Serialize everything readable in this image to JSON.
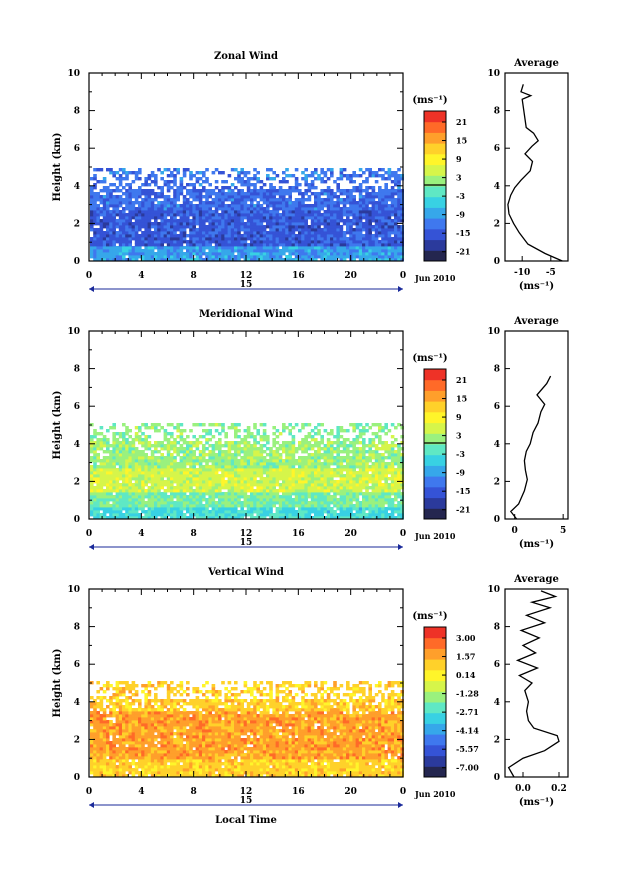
{
  "colors": {
    "background": "#ffffff",
    "axis": "#000000",
    "palette": [
      "#24264f",
      "#2b3a9c",
      "#3553d6",
      "#3f78ee",
      "#36a7ea",
      "#38d1e3",
      "#5fe8c4",
      "#9af17e",
      "#d6f54a",
      "#fff52a",
      "#ffd12a",
      "#ff9f2b",
      "#ff6a28",
      "#ee3227"
    ]
  },
  "chart_data": [
    {
      "type": "heatmap",
      "title": "Zonal Wind",
      "ylabel": "Height (km)",
      "xlabel": "",
      "xlim": [
        0,
        24
      ],
      "ylim": [
        0,
        10
      ],
      "x_ticks": [
        "0",
        "4",
        "8",
        "12",
        "16",
        "20",
        "0"
      ],
      "y_ticks": [
        "0",
        "2",
        "4",
        "6",
        "8",
        "10"
      ],
      "date_axis": {
        "day_label": "15",
        "month_label": "Jun 2010"
      },
      "colorbar": {
        "unit": "(ms⁻¹)",
        "ticks": [
          "21",
          "15",
          "9",
          "3",
          "-3",
          "-9",
          "-15",
          "-21"
        ],
        "range": [
          -24,
          24
        ],
        "zero_line": true
      },
      "field": {
        "description_bins": "dominant value per height band (km)",
        "bands": [
          {
            "from": 0.0,
            "to": 0.7,
            "value": -9
          },
          {
            "from": 0.7,
            "to": 2.6,
            "value": -15
          },
          {
            "from": 2.6,
            "to": 4.2,
            "value": -13
          },
          {
            "from": 4.2,
            "to": 4.8,
            "value": -12
          }
        ],
        "data_top_km": 4.8
      },
      "average_profile": {
        "title": "Average",
        "xlabel": "(ms⁻¹)",
        "x_ticks": [
          "-10",
          "-5"
        ],
        "xlim": [
          -13,
          -2
        ],
        "ylim": [
          0,
          10
        ],
        "points": [
          [
            -3,
            0.0
          ],
          [
            -6,
            0.4
          ],
          [
            -9,
            0.9
          ],
          [
            -10.5,
            1.5
          ],
          [
            -11.5,
            2.0
          ],
          [
            -12.3,
            2.5
          ],
          [
            -12.5,
            3.0
          ],
          [
            -12.0,
            3.5
          ],
          [
            -11.3,
            3.9
          ],
          [
            -10.2,
            4.3
          ],
          [
            -8.6,
            4.8
          ],
          [
            -8.2,
            5.3
          ],
          [
            -9.5,
            5.7
          ],
          [
            -8.3,
            6.1
          ],
          [
            -7.2,
            6.4
          ],
          [
            -8.0,
            6.8
          ],
          [
            -9.3,
            7.1
          ],
          [
            -10.0,
            8.6
          ],
          [
            -8.5,
            8.8
          ],
          [
            -10.2,
            9.0
          ],
          [
            -9.8,
            9.4
          ]
        ]
      }
    },
    {
      "type": "heatmap",
      "title": "Meridional Wind",
      "ylabel": "Height (km)",
      "xlabel": "",
      "xlim": [
        0,
        24
      ],
      "ylim": [
        0,
        10
      ],
      "x_ticks": [
        "0",
        "4",
        "8",
        "12",
        "16",
        "20",
        "0"
      ],
      "y_ticks": [
        "0",
        "2",
        "4",
        "6",
        "8",
        "10"
      ],
      "date_axis": {
        "day_label": "15",
        "month_label": "Jun 2010"
      },
      "colorbar": {
        "unit": "(ms⁻¹)",
        "ticks": [
          "21",
          "15",
          "9",
          "3",
          "-3",
          "-9",
          "-15",
          "-21"
        ],
        "range": [
          -24,
          24
        ],
        "zero_line": true
      },
      "field": {
        "description_bins": "dominant value per height band (km)",
        "bands": [
          {
            "from": 0.0,
            "to": 0.6,
            "value": -4
          },
          {
            "from": 0.6,
            "to": 1.3,
            "value": 0
          },
          {
            "from": 1.3,
            "to": 2.6,
            "value": 5
          },
          {
            "from": 2.6,
            "to": 4.1,
            "value": 2
          },
          {
            "from": 4.1,
            "to": 5.0,
            "value": 1
          }
        ],
        "data_top_km": 5.0
      },
      "average_profile": {
        "title": "Average",
        "xlabel": "(ms⁻¹)",
        "x_ticks": [
          "0",
          "5"
        ],
        "xlim": [
          -1,
          5.5
        ],
        "ylim": [
          0,
          10
        ],
        "points": [
          [
            0.2,
            0.0
          ],
          [
            -0.4,
            0.4
          ],
          [
            0.4,
            0.8
          ],
          [
            1.0,
            1.5
          ],
          [
            1.3,
            2.1
          ],
          [
            1.1,
            2.6
          ],
          [
            1.0,
            3.1
          ],
          [
            1.2,
            3.6
          ],
          [
            1.6,
            4.0
          ],
          [
            1.9,
            4.6
          ],
          [
            2.4,
            5.1
          ],
          [
            2.7,
            5.7
          ],
          [
            3.1,
            6.1
          ],
          [
            2.3,
            6.6
          ],
          [
            3.3,
            7.2
          ],
          [
            3.7,
            7.6
          ]
        ]
      }
    },
    {
      "type": "heatmap",
      "title": "Vertical Wind",
      "ylabel": "Height (km)",
      "xlabel": "Local Time",
      "xlim": [
        0,
        24
      ],
      "ylim": [
        0,
        10
      ],
      "x_ticks": [
        "0",
        "4",
        "8",
        "12",
        "16",
        "20",
        "0"
      ],
      "y_ticks": [
        "0",
        "2",
        "4",
        "6",
        "8",
        "10"
      ],
      "date_axis": {
        "day_label": "15",
        "month_label": "Jun 2010"
      },
      "colorbar": {
        "unit": "(ms⁻¹)",
        "ticks": [
          "3.00",
          "1.57",
          "0.14",
          "-1.28",
          "-2.71",
          "-4.14",
          "-5.57",
          "-7.00"
        ],
        "range": [
          -7.7,
          3.7
        ],
        "zero_line": false
      },
      "field": {
        "description_bins": "dominant value per height band (km)",
        "bands": [
          {
            "from": 0.0,
            "to": 0.8,
            "value": 0.8
          },
          {
            "from": 0.8,
            "to": 3.4,
            "value": 1.6
          },
          {
            "from": 3.4,
            "to": 5.0,
            "value": 0.8
          }
        ],
        "data_top_km": 5.0
      },
      "average_profile": {
        "title": "Average",
        "xlabel": "(ms⁻¹)",
        "x_ticks": [
          "0.0",
          "0.2"
        ],
        "xlim": [
          -0.1,
          0.25
        ],
        "ylim": [
          0,
          10
        ],
        "points": [
          [
            -0.05,
            0.0
          ],
          [
            -0.08,
            0.5
          ],
          [
            0.0,
            1.0
          ],
          [
            0.12,
            1.4
          ],
          [
            0.2,
            1.9
          ],
          [
            0.19,
            2.2
          ],
          [
            0.06,
            2.6
          ],
          [
            0.03,
            3.0
          ],
          [
            0.02,
            3.5
          ],
          [
            0.03,
            4.0
          ],
          [
            0.01,
            4.6
          ],
          [
            0.05,
            5.0
          ],
          [
            -0.02,
            5.4
          ],
          [
            0.08,
            5.8
          ],
          [
            -0.03,
            6.2
          ],
          [
            0.07,
            6.6
          ],
          [
            0.0,
            7.0
          ],
          [
            0.09,
            7.4
          ],
          [
            -0.01,
            7.8
          ],
          [
            0.12,
            8.2
          ],
          [
            0.02,
            8.6
          ],
          [
            0.15,
            9.0
          ],
          [
            0.05,
            9.3
          ],
          [
            0.18,
            9.6
          ],
          [
            0.1,
            9.9
          ]
        ]
      }
    }
  ]
}
